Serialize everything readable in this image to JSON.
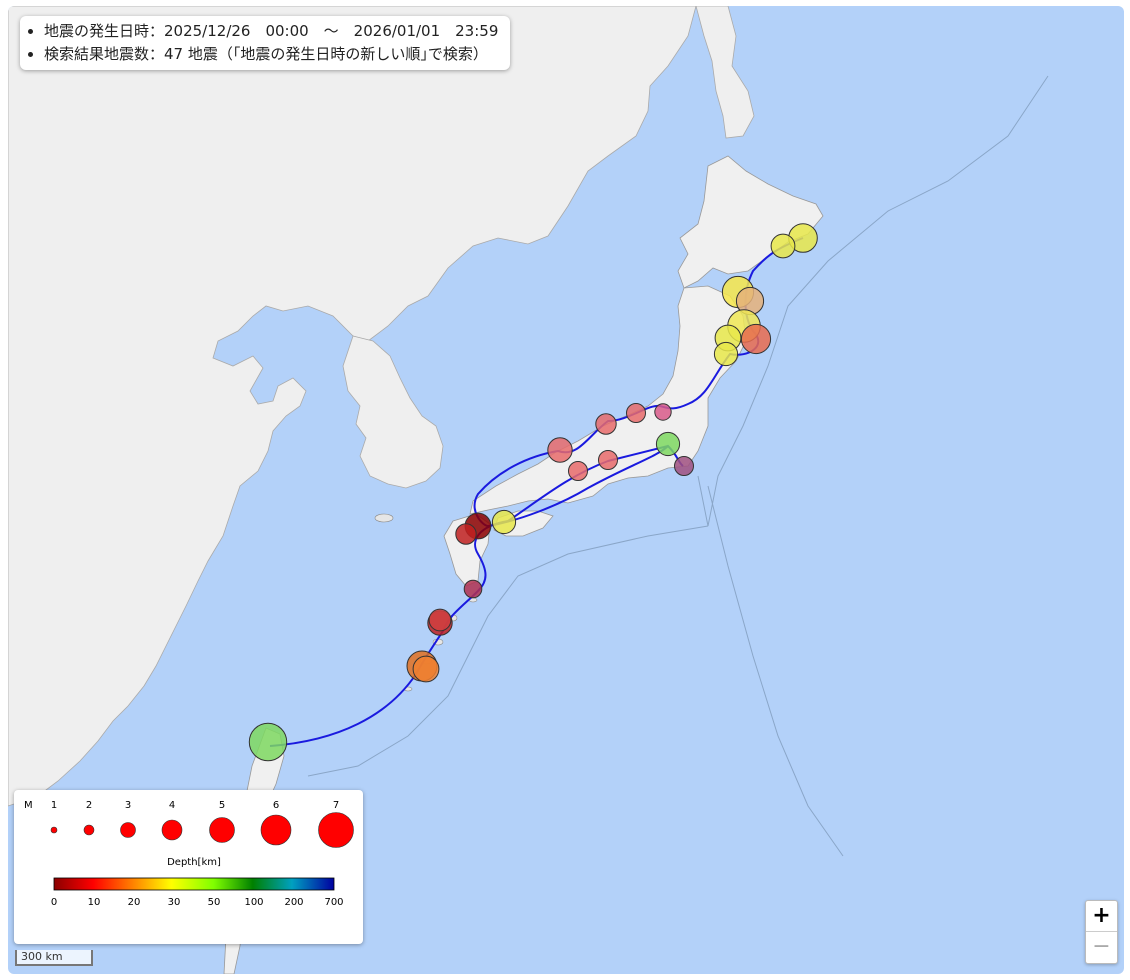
{
  "info": {
    "line1": "地震の発生日時：2025/12/26　00:00　～　2026/01/01　23:59",
    "line2": "検索結果地震数：47 地震（｢地震の発生日時の新しい順｣で検索）"
  },
  "legend": {
    "mag_label": "M",
    "mag_values": [
      "1",
      "2",
      "3",
      "4",
      "5",
      "6",
      "7"
    ],
    "depth_title": "Depth[km]",
    "depth_ticks": [
      "0",
      "10",
      "20",
      "30",
      "50",
      "100",
      "200",
      "700"
    ],
    "colors": [
      "#8b0000",
      "#ff0000",
      "#ff8000",
      "#ffff00",
      "#80ff00",
      "#008000",
      "#00a0c0",
      "#0000a0"
    ]
  },
  "zoom": {
    "in": "+",
    "out": "−"
  },
  "scale": "300 km",
  "quakes": [
    {
      "m": 4.2,
      "depth_color": "#e8e84a"
    },
    {
      "m": 3.5,
      "depth_color": "#e8e84a"
    },
    {
      "m": 4.6,
      "depth_color": "#f6e64a"
    },
    {
      "m": 4.0,
      "depth_color": "#e5b27a"
    },
    {
      "m": 4.8,
      "depth_color": "#f0e855"
    },
    {
      "m": 4.3,
      "depth_color": "#e86b4f"
    },
    {
      "m": 3.8,
      "depth_color": "#e8e84a"
    },
    {
      "m": 3.4,
      "depth_color": "#e8e84a"
    },
    {
      "m": 3.0,
      "depth_color": "#e86b6b"
    },
    {
      "m": 2.8,
      "depth_color": "#e86b6b"
    },
    {
      "m": 2.4,
      "depth_color": "#d85a8a"
    },
    {
      "m": 3.4,
      "depth_color": "#7ed860"
    },
    {
      "m": 2.8,
      "depth_color": "#a05080"
    },
    {
      "m": 3.6,
      "depth_color": "#e86b6b"
    },
    {
      "m": 2.8,
      "depth_color": "#e86b6b"
    },
    {
      "m": 2.8,
      "depth_color": "#e86b6b"
    },
    {
      "m": 3.4,
      "depth_color": "#e8e84a"
    },
    {
      "m": 3.8,
      "depth_color": "#8b0000"
    },
    {
      "m": 3.0,
      "depth_color": "#c02020"
    },
    {
      "m": 2.6,
      "depth_color": "#b03050"
    },
    {
      "m": 3.6,
      "depth_color": "#c02020"
    },
    {
      "m": 3.2,
      "depth_color": "#d04040"
    },
    {
      "m": 4.4,
      "depth_color": "#e07020"
    },
    {
      "m": 3.8,
      "depth_color": "#f08030"
    },
    {
      "m": 5.5,
      "depth_color": "#7ed860"
    }
  ]
}
